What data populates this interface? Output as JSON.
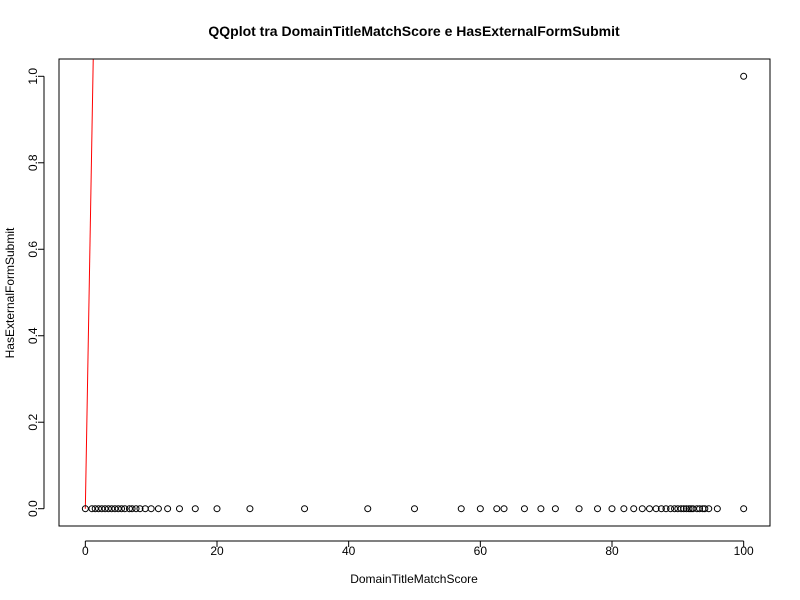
{
  "chart_data": {
    "type": "scatter",
    "title": "QQplot tra DomainTitleMatchScore e HasExternalFormSubmit",
    "xlabel": "DomainTitleMatchScore",
    "ylabel": "HasExternalFormSubmit",
    "xlim": [
      -4,
      104
    ],
    "ylim": [
      -0.04,
      1.04
    ],
    "xticks": [
      0,
      20,
      40,
      60,
      80,
      100
    ],
    "yticks": [
      0.0,
      0.2,
      0.4,
      0.6,
      0.8,
      1.0
    ],
    "xtick_labels": [
      "0",
      "20",
      "40",
      "60",
      "80",
      "100"
    ],
    "ytick_labels": [
      "0.0",
      "0.2",
      "0.4",
      "0.6",
      "0.8",
      "1.0"
    ],
    "grid": false,
    "point_color": "#000000",
    "line_color": "#ff0000",
    "points": [
      {
        "x": 0,
        "y": 0
      },
      {
        "x": 1,
        "y": 0
      },
      {
        "x": 1.5,
        "y": 0
      },
      {
        "x": 2,
        "y": 0
      },
      {
        "x": 2.5,
        "y": 0
      },
      {
        "x": 3,
        "y": 0
      },
      {
        "x": 3.5,
        "y": 0
      },
      {
        "x": 4,
        "y": 0
      },
      {
        "x": 4.5,
        "y": 0
      },
      {
        "x": 5,
        "y": 0
      },
      {
        "x": 5.5,
        "y": 0
      },
      {
        "x": 6,
        "y": 0
      },
      {
        "x": 6.7,
        "y": 0
      },
      {
        "x": 7.1,
        "y": 0
      },
      {
        "x": 7.7,
        "y": 0
      },
      {
        "x": 8.3,
        "y": 0
      },
      {
        "x": 9.1,
        "y": 0
      },
      {
        "x": 10,
        "y": 0
      },
      {
        "x": 11.1,
        "y": 0
      },
      {
        "x": 12.5,
        "y": 0
      },
      {
        "x": 14.3,
        "y": 0
      },
      {
        "x": 16.7,
        "y": 0
      },
      {
        "x": 20,
        "y": 0
      },
      {
        "x": 25,
        "y": 0
      },
      {
        "x": 33.3,
        "y": 0
      },
      {
        "x": 42.9,
        "y": 0
      },
      {
        "x": 50,
        "y": 0
      },
      {
        "x": 57.1,
        "y": 0
      },
      {
        "x": 60,
        "y": 0
      },
      {
        "x": 62.5,
        "y": 0
      },
      {
        "x": 63.6,
        "y": 0
      },
      {
        "x": 66.7,
        "y": 0
      },
      {
        "x": 69.2,
        "y": 0
      },
      {
        "x": 71.4,
        "y": 0
      },
      {
        "x": 75,
        "y": 0
      },
      {
        "x": 77.8,
        "y": 0
      },
      {
        "x": 80,
        "y": 0
      },
      {
        "x": 81.8,
        "y": 0
      },
      {
        "x": 83.3,
        "y": 0
      },
      {
        "x": 84.6,
        "y": 0
      },
      {
        "x": 85.7,
        "y": 0
      },
      {
        "x": 86.7,
        "y": 0
      },
      {
        "x": 87.5,
        "y": 0
      },
      {
        "x": 88.2,
        "y": 0
      },
      {
        "x": 88.9,
        "y": 0
      },
      {
        "x": 89.5,
        "y": 0
      },
      {
        "x": 90,
        "y": 0
      },
      {
        "x": 90.5,
        "y": 0
      },
      {
        "x": 90.9,
        "y": 0
      },
      {
        "x": 91.3,
        "y": 0
      },
      {
        "x": 91.7,
        "y": 0
      },
      {
        "x": 92,
        "y": 0
      },
      {
        "x": 92.3,
        "y": 0
      },
      {
        "x": 92.9,
        "y": 0
      },
      {
        "x": 93.3,
        "y": 0
      },
      {
        "x": 93.8,
        "y": 0
      },
      {
        "x": 94.1,
        "y": 0
      },
      {
        "x": 94.7,
        "y": 0
      },
      {
        "x": 96,
        "y": 0
      },
      {
        "x": 100,
        "y": 0
      },
      {
        "x": 100,
        "y": 1
      }
    ],
    "reference_line": {
      "x1": 0,
      "y1": 0,
      "x2": 1.2,
      "y2": 1.04
    }
  }
}
